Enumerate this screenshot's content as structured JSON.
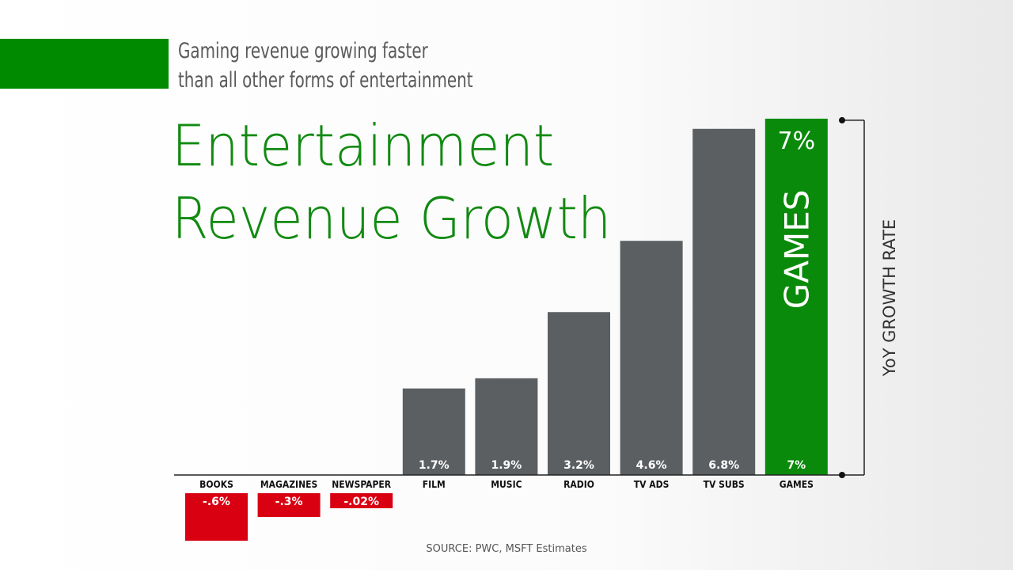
{
  "header": {
    "subtitle_line1": "Gaming revenue growing faster",
    "subtitle_line2": "than all other forms of entertainment",
    "title_line1": "Entertainment",
    "title_line2": "Revenue Growth",
    "source": "SOURCE: PWC, MSFT Estimates"
  },
  "colors": {
    "accent": "#008a00",
    "bar": "#5c5f61",
    "negative": "#d90012",
    "highlight": "#0a8a0a"
  },
  "chart_data": {
    "type": "bar",
    "categories": [
      "BOOKS",
      "MAGAZINES",
      "NEWSPAPER",
      "FILM",
      "MUSIC",
      "RADIO",
      "TV ADS",
      "TV SUBS",
      "GAMES"
    ],
    "values": [
      -0.6,
      -0.3,
      -0.02,
      1.7,
      1.9,
      3.2,
      4.6,
      6.8,
      7.0
    ],
    "value_labels": [
      "-.6%",
      "-.3%",
      "-.02%",
      "1.7%",
      "1.9%",
      "3.2%",
      "4.6%",
      "6.8%",
      "7%"
    ],
    "highlight_category": "GAMES",
    "highlight_top_label": "7%",
    "highlight_bar_label": "GAMES",
    "ylabel": "YoY GROWTH RATE",
    "title": "Entertainment Revenue Growth"
  }
}
